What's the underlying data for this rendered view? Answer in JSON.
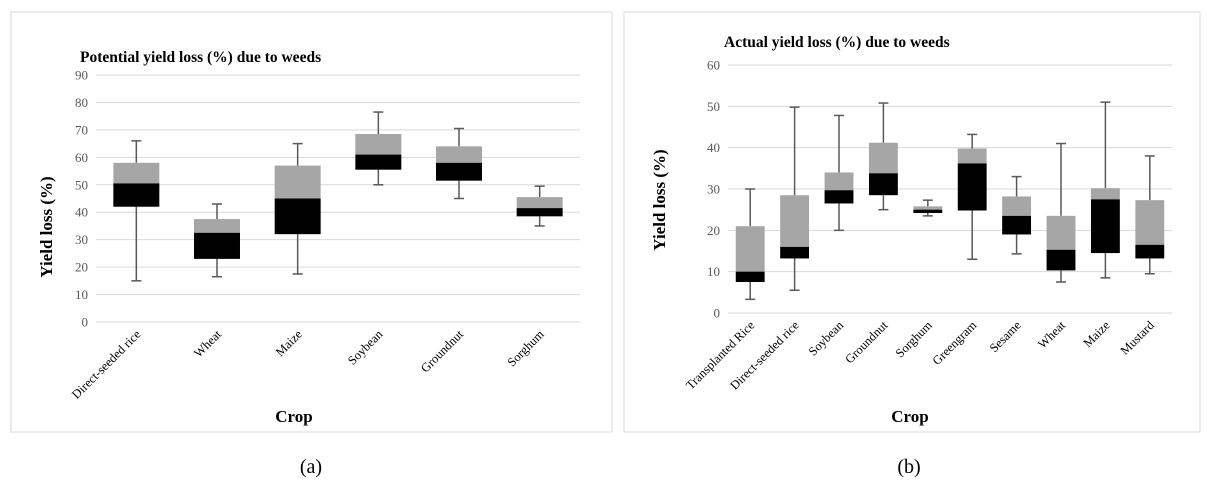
{
  "colors": {
    "lower_box": "#000000",
    "upper_box": "#a6a6a6",
    "whisker": "#595959",
    "grid": "#d9d9d9",
    "frame": "#d9d9d9"
  },
  "chart_data": [
    {
      "type": "boxplot",
      "panel_label": "(a)",
      "title": "Potential yield loss (%) due to weeds",
      "xlabel": "Crop",
      "ylabel": "Yield loss (%)",
      "ylim": [
        0,
        90
      ],
      "yticks": [
        0,
        10,
        20,
        30,
        40,
        50,
        60,
        70,
        80,
        90
      ],
      "grid": true,
      "legend": "none",
      "categories": [
        "Direct-seeded rice",
        "Wheat",
        "Maize",
        "Soybean",
        "Groundnut",
        "Sorghum"
      ],
      "min": [
        15,
        16.5,
        17.5,
        50,
        45,
        35
      ],
      "q1": [
        42,
        23,
        32,
        55.5,
        51.5,
        38.5
      ],
      "median": [
        50.5,
        32.5,
        45,
        61,
        58,
        41.5
      ],
      "q3": [
        58,
        37.5,
        57,
        68.5,
        64,
        45.5
      ],
      "max": [
        66,
        43,
        65,
        76.5,
        70.5,
        49.5
      ]
    },
    {
      "type": "boxplot",
      "panel_label": "(b)",
      "title": "Actual yield loss (%) due to weeds",
      "xlabel": "Crop",
      "ylabel": "Yield loss (%)",
      "ylim": [
        0,
        60
      ],
      "yticks": [
        0,
        10,
        20,
        30,
        40,
        50,
        60
      ],
      "grid": true,
      "legend": "none",
      "categories": [
        "Transplanted Rice",
        "Direct-seeded rice",
        "Soybean",
        "Groundnut",
        "Sorghum",
        "Greengram",
        "Sesame",
        "Wheat",
        "Maize",
        "Mustard"
      ],
      "min": [
        3.3,
        5.5,
        20,
        25,
        23.5,
        13,
        14.3,
        7.5,
        8.5,
        9.5
      ],
      "q1": [
        7.5,
        13.2,
        26.5,
        28.5,
        24.2,
        24.8,
        19,
        10.3,
        14.5,
        13.2
      ],
      "median": [
        10,
        16,
        29.7,
        33.8,
        25,
        36.2,
        23.5,
        15.3,
        27.5,
        16.5
      ],
      "q3": [
        21,
        28.5,
        34,
        41.2,
        25.8,
        39.8,
        28.2,
        23.5,
        30.2,
        27.3
      ],
      "max": [
        30,
        49.8,
        47.8,
        50.8,
        27.3,
        43.2,
        33,
        41,
        51,
        38
      ]
    }
  ]
}
